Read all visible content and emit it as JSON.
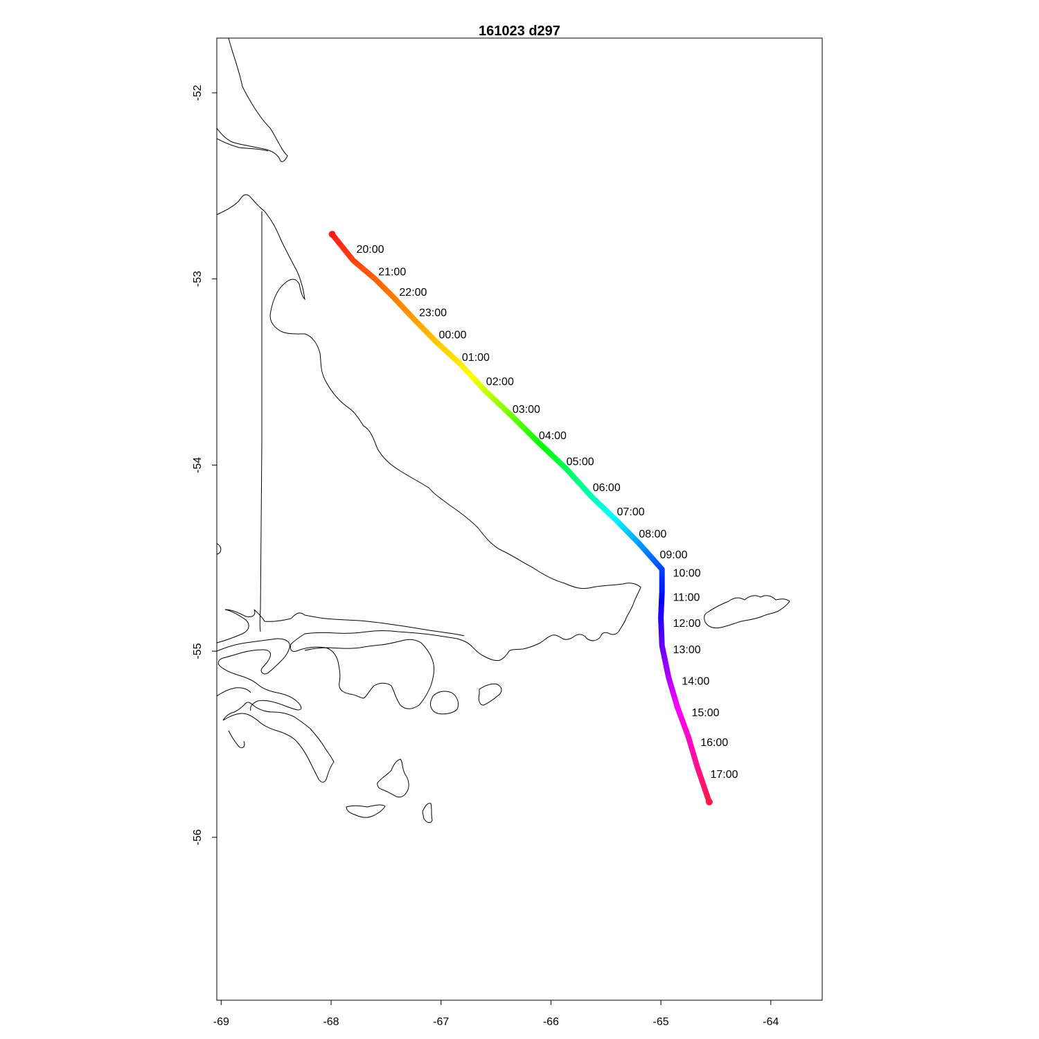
{
  "title": "161023   d297",
  "chart_data": {
    "type": "line",
    "title": "161023   d297",
    "xlabel": "",
    "ylabel": "",
    "xlim": [
      -69.03,
      -63.5
    ],
    "ylim": [
      -56.87,
      -51.71
    ],
    "x_ticks": [
      -69,
      -68,
      -67,
      -66,
      -65,
      -64
    ],
    "x_tick_labels": [
      "-69",
      "-68",
      "-67",
      "-66",
      "-65",
      "-64"
    ],
    "y_ticks": [
      -52,
      -53,
      -54,
      -55,
      -56
    ],
    "y_tick_labels": [
      "-52",
      "-53",
      "-54",
      "-55",
      "-56"
    ],
    "grid": false,
    "legend": "none",
    "track": {
      "start": {
        "lon": -67.99,
        "lat": -52.76
      },
      "end": {
        "lon": -64.56,
        "lat": -55.81
      },
      "points": [
        {
          "lon": -67.99,
          "lat": -52.76
        },
        {
          "lon": -67.8,
          "lat": -52.9
        },
        {
          "lon": -67.6,
          "lat": -53.0
        },
        {
          "lon": -67.43,
          "lat": -53.1
        },
        {
          "lon": -67.24,
          "lat": -53.22
        },
        {
          "lon": -67.04,
          "lat": -53.34
        },
        {
          "lon": -66.82,
          "lat": -53.46
        },
        {
          "lon": -66.6,
          "lat": -53.6
        },
        {
          "lon": -66.35,
          "lat": -53.74
        },
        {
          "lon": -66.11,
          "lat": -53.88
        },
        {
          "lon": -65.86,
          "lat": -54.02
        },
        {
          "lon": -65.63,
          "lat": -54.17
        },
        {
          "lon": -65.4,
          "lat": -54.3
        },
        {
          "lon": -65.2,
          "lat": -54.42
        },
        {
          "lon": -64.99,
          "lat": -54.56
        },
        {
          "lon": -64.99,
          "lat": -54.68
        },
        {
          "lon": -65.0,
          "lat": -54.82
        },
        {
          "lon": -64.99,
          "lat": -54.97
        },
        {
          "lon": -64.93,
          "lat": -55.14
        },
        {
          "lon": -64.85,
          "lat": -55.3
        },
        {
          "lon": -64.75,
          "lat": -55.46
        },
        {
          "lon": -64.67,
          "lat": -55.62
        },
        {
          "lon": -64.56,
          "lat": -55.81
        }
      ]
    },
    "time_labels": [
      {
        "text": "20:00",
        "lon": -67.77,
        "lat": -52.86
      },
      {
        "text": "21:00",
        "lon": -67.57,
        "lat": -52.98
      },
      {
        "text": "22:00",
        "lon": -67.38,
        "lat": -53.09
      },
      {
        "text": "23:00",
        "lon": -67.2,
        "lat": -53.2
      },
      {
        "text": "00:00",
        "lon": -67.02,
        "lat": -53.32
      },
      {
        "text": "01:00",
        "lon": -66.81,
        "lat": -53.44
      },
      {
        "text": "02:00",
        "lon": -66.59,
        "lat": -53.57
      },
      {
        "text": "03:00",
        "lon": -66.35,
        "lat": -53.72
      },
      {
        "text": "04:00",
        "lon": -66.11,
        "lat": -53.86
      },
      {
        "text": "05:00",
        "lon": -65.86,
        "lat": -54.0
      },
      {
        "text": "06:00",
        "lon": -65.62,
        "lat": -54.14
      },
      {
        "text": "07:00",
        "lon": -65.4,
        "lat": -54.27
      },
      {
        "text": "08:00",
        "lon": -65.2,
        "lat": -54.39
      },
      {
        "text": "09:00",
        "lon": -65.01,
        "lat": -54.5
      },
      {
        "text": "10:00",
        "lon": -64.89,
        "lat": -54.6
      },
      {
        "text": "11:00",
        "lon": -64.89,
        "lat": -54.73
      },
      {
        "text": "12:00",
        "lon": -64.89,
        "lat": -54.87
      },
      {
        "text": "13:00",
        "lon": -64.89,
        "lat": -55.01
      },
      {
        "text": "14:00",
        "lon": -64.81,
        "lat": -55.18
      },
      {
        "text": "15:00",
        "lon": -64.72,
        "lat": -55.35
      },
      {
        "text": "16:00",
        "lon": -64.64,
        "lat": -55.51
      },
      {
        "text": "17:00",
        "lon": -64.55,
        "lat": -55.68
      }
    ],
    "colors": {
      "gradient": [
        "#ff1a1a",
        "#ff8800",
        "#ffff00",
        "#00ff00",
        "#00ffff",
        "#0000ff",
        "#ff00ff",
        "#ff1a4a"
      ],
      "coastline": "#000000",
      "frame": "#000000"
    }
  }
}
